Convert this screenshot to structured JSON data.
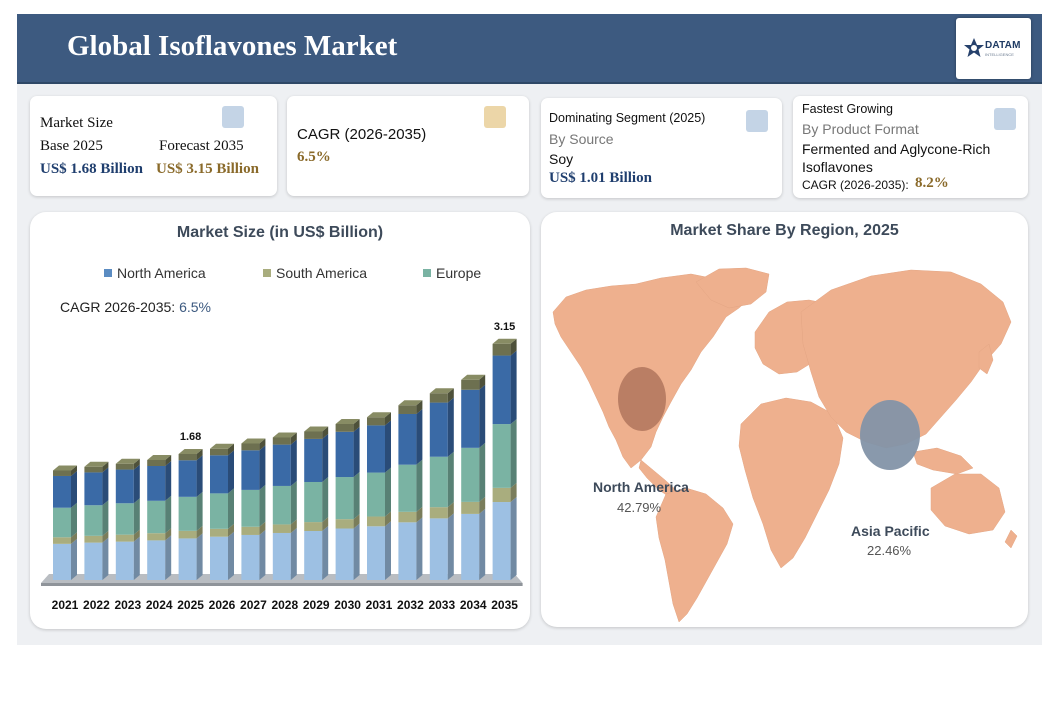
{
  "header": {
    "title": "Global Isoflavones Market"
  },
  "logo": {
    "name": "DATAM",
    "tagline": "INTELLIGENCE"
  },
  "cards": {
    "market_size": {
      "heading": "Market Size",
      "base_label": "Base 2025",
      "base_value": "US$ 1.68 Billion",
      "forecast_label": "Forecast 2035",
      "forecast_value": "US$ 3.15 Billion"
    },
    "cagr": {
      "label": "CAGR (2026-2035)",
      "value": "6.5%"
    },
    "dominating": {
      "heading": "Dominating Segment (2025)",
      "by": "By Source",
      "segment": "Soy",
      "value": "US$ 1.01 Billion"
    },
    "fastest": {
      "heading": "Fastest Growing",
      "by": "By Product Format",
      "segment_line1": "Fermented and Aglycone-Rich",
      "segment_line2": "Isoflavones",
      "cagr_label": "CAGR (2026-2035):",
      "cagr_value": "8.2%"
    }
  },
  "colors": {
    "header": "#3d5a80",
    "north_america": "#3a6aa6",
    "south_america": "#a9ad7e",
    "europe": "#7ab3a3",
    "base": "#9dc0e3",
    "top_cap": "#6d7050",
    "map_land": "#eeb08e",
    "bubble_na": "#a86e55",
    "bubble_ap": "#8393a8"
  },
  "chart_data": [
    {
      "type": "bar",
      "title": "Market Size (in US$ Billion)",
      "annotation": {
        "label": "CAGR 2026-2035:",
        "value": "6.5%"
      },
      "legend": [
        "North America",
        "South America",
        "Europe"
      ],
      "categories": [
        "2021",
        "2022",
        "2023",
        "2024",
        "2025",
        "2026",
        "2027",
        "2028",
        "2029",
        "2030",
        "2031",
        "2032",
        "2033",
        "2034",
        "2035"
      ],
      "totals": [
        1.46,
        1.51,
        1.55,
        1.6,
        1.68,
        1.75,
        1.82,
        1.9,
        1.98,
        2.08,
        2.17,
        2.33,
        2.49,
        2.67,
        3.15
      ],
      "data_labels": {
        "2025": "1.68",
        "2035": "3.15"
      },
      "ylim": [
        0,
        3.6
      ],
      "stacked": true,
      "legend_position": "top"
    },
    {
      "type": "map",
      "title": "Market Share By Region, 2025",
      "regions": [
        {
          "name": "North America",
          "share": "42.79%"
        },
        {
          "name": "Asia Pacific",
          "share": "22.46%"
        }
      ]
    }
  ]
}
